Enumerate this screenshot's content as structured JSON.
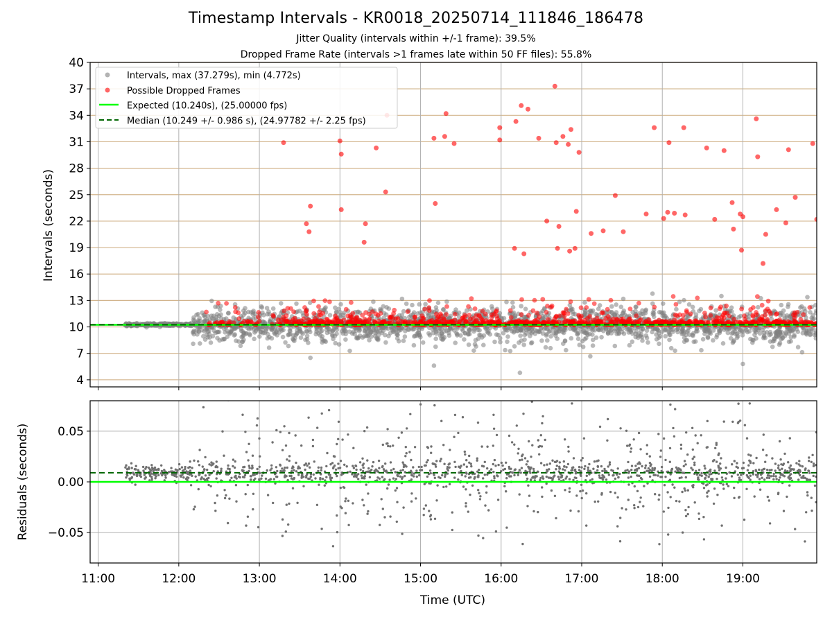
{
  "figure": {
    "title": "Timestamp Intervals - KR0018_20250714_111846_186478",
    "subtitle_1": "Jitter Quality (intervals within +/-1 frame): 39.5%",
    "subtitle_2": "Dropped Frame Rate (intervals >1 frames late within 50 FF files): 55.8%"
  },
  "colors": {
    "intervals": "#808080",
    "dropped": "#ff0000",
    "expected": "#00ff00",
    "median": "#006400",
    "hgrid_top": "#d2b48c",
    "grid": "#b0b0b0"
  },
  "chart_data": [
    {
      "type": "scatter",
      "panel": "top",
      "ylabel": "Intervals (seconds)",
      "ylim": [
        3.2,
        40
      ],
      "yticks": [
        "4",
        "7",
        "10",
        "13",
        "16",
        "19",
        "22",
        "25",
        "28",
        "31",
        "34",
        "37",
        "40"
      ],
      "xlim": [
        "10:54",
        "19:55"
      ],
      "xticks": [
        "11:00",
        "12:00",
        "13:00",
        "14:00",
        "15:00",
        "16:00",
        "17:00",
        "18:00",
        "19:00"
      ],
      "grid": true,
      "legend_position": "top-left",
      "legend": [
        "Intervals, max (37.279s), min (4.772s)",
        "Possible Dropped Frames",
        "Expected (10.240s), (25.00000 fps)",
        "Median (10.249 +/- 0.986 s), (24.97782 +/- 2.25 fps)"
      ],
      "series": [
        {
          "name": "Intervals, max (37.279s), min (4.772s)",
          "kind": "scatter",
          "approx_distribution": {
            "x_start": "11:20",
            "x_end": "19:55",
            "center": 10.25,
            "spread_sd": 1.0,
            "narrow_until": "12:10"
          },
          "notable_points": [
            {
              "x": "16:14",
              "y": 4.8
            },
            {
              "x": "13:38",
              "y": 6.5
            },
            {
              "x": "15:10",
              "y": 5.6
            },
            {
              "x": "19:00",
              "y": 5.8
            }
          ]
        },
        {
          "name": "Possible Dropped Frames",
          "kind": "scatter",
          "band": {
            "from": 10.2,
            "to": 13.5
          },
          "outliers": [
            {
              "x": "13:18",
              "y": 30.9
            },
            {
              "x": "13:35",
              "y": 21.7
            },
            {
              "x": "13:37",
              "y": 20.8
            },
            {
              "x": "13:38",
              "y": 23.7
            },
            {
              "x": "14:00",
              "y": 31.1
            },
            {
              "x": "14:01",
              "y": 29.6
            },
            {
              "x": "14:01",
              "y": 23.3
            },
            {
              "x": "14:18",
              "y": 19.6
            },
            {
              "x": "14:19",
              "y": 21.7
            },
            {
              "x": "14:27",
              "y": 30.3
            },
            {
              "x": "14:34",
              "y": 25.3
            },
            {
              "x": "14:35",
              "y": 34.0
            },
            {
              "x": "15:10",
              "y": 31.4
            },
            {
              "x": "15:11",
              "y": 24.0
            },
            {
              "x": "15:18",
              "y": 31.6
            },
            {
              "x": "15:19",
              "y": 34.2
            },
            {
              "x": "15:25",
              "y": 30.8
            },
            {
              "x": "15:59",
              "y": 32.6
            },
            {
              "x": "15:59",
              "y": 31.2
            },
            {
              "x": "16:10",
              "y": 18.9
            },
            {
              "x": "16:11",
              "y": 33.3
            },
            {
              "x": "16:15",
              "y": 35.1
            },
            {
              "x": "16:17",
              "y": 18.3
            },
            {
              "x": "16:20",
              "y": 34.7
            },
            {
              "x": "16:28",
              "y": 31.4
            },
            {
              "x": "16:34",
              "y": 22.0
            },
            {
              "x": "16:40",
              "y": 37.3
            },
            {
              "x": "16:41",
              "y": 30.9
            },
            {
              "x": "16:42",
              "y": 18.9
            },
            {
              "x": "16:43",
              "y": 21.4
            },
            {
              "x": "16:46",
              "y": 31.6
            },
            {
              "x": "16:50",
              "y": 30.7
            },
            {
              "x": "16:51",
              "y": 18.6
            },
            {
              "x": "16:52",
              "y": 32.4
            },
            {
              "x": "16:55",
              "y": 18.9
            },
            {
              "x": "16:56",
              "y": 23.1
            },
            {
              "x": "16:58",
              "y": 29.8
            },
            {
              "x": "17:07",
              "y": 20.6
            },
            {
              "x": "17:16",
              "y": 20.9
            },
            {
              "x": "17:25",
              "y": 24.9
            },
            {
              "x": "17:31",
              "y": 20.8
            },
            {
              "x": "17:48",
              "y": 22.8
            },
            {
              "x": "17:54",
              "y": 32.6
            },
            {
              "x": "18:01",
              "y": 22.3
            },
            {
              "x": "18:04",
              "y": 23.0
            },
            {
              "x": "18:05",
              "y": 30.9
            },
            {
              "x": "18:09",
              "y": 22.9
            },
            {
              "x": "18:16",
              "y": 32.6
            },
            {
              "x": "18:17",
              "y": 22.7
            },
            {
              "x": "18:33",
              "y": 30.3
            },
            {
              "x": "18:39",
              "y": 22.2
            },
            {
              "x": "18:46",
              "y": 30.0
            },
            {
              "x": "18:52",
              "y": 24.1
            },
            {
              "x": "18:53",
              "y": 21.1
            },
            {
              "x": "18:58",
              "y": 22.8
            },
            {
              "x": "18:59",
              "y": 18.7
            },
            {
              "x": "19:00",
              "y": 22.5
            },
            {
              "x": "19:10",
              "y": 33.6
            },
            {
              "x": "19:11",
              "y": 29.3
            },
            {
              "x": "19:15",
              "y": 17.2
            },
            {
              "x": "19:17",
              "y": 20.5
            },
            {
              "x": "19:25",
              "y": 23.3
            },
            {
              "x": "19:32",
              "y": 21.8
            },
            {
              "x": "19:34",
              "y": 30.1
            },
            {
              "x": "19:39",
              "y": 24.7
            },
            {
              "x": "19:52",
              "y": 30.8
            },
            {
              "x": "19:55",
              "y": 22.2
            }
          ]
        },
        {
          "name": "Expected (10.240s), (25.00000 fps)",
          "kind": "hline",
          "y": 10.24,
          "style": "solid"
        },
        {
          "name": "Median (10.249 +/- 0.986 s), (24.97782 +/- 2.25 fps)",
          "kind": "hline",
          "y": 10.249,
          "style": "dashed"
        }
      ]
    },
    {
      "type": "scatter",
      "panel": "bottom",
      "xlabel": "Time (UTC)",
      "ylabel": "Residuals (seconds)",
      "ylim": [
        -0.08,
        0.08
      ],
      "yticks": [
        "−0.05",
        "0.00",
        "0.05"
      ],
      "xlim": [
        "10:54",
        "19:55"
      ],
      "xticks": [
        "11:00",
        "12:00",
        "13:00",
        "14:00",
        "15:00",
        "16:00",
        "17:00",
        "18:00",
        "19:00"
      ],
      "grid": true,
      "series": [
        {
          "name": "residuals",
          "kind": "scatter",
          "approx_distribution": {
            "x_start": "11:20",
            "x_end": "19:55",
            "center": 0.009,
            "spread_sd": 0.02
          }
        },
        {
          "name": "expected",
          "kind": "hline",
          "y": 0.0,
          "style": "solid"
        },
        {
          "name": "median",
          "kind": "hline",
          "y": 0.009,
          "style": "dashed"
        }
      ]
    }
  ]
}
